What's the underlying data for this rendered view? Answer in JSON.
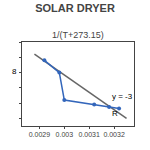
{
  "chart_data": {
    "type": "line",
    "title": "SOLAR DRYER",
    "xlabel": "1/(T+273.15)",
    "series": [
      {
        "type": "line",
        "color": "#666666",
        "line_style": "solid",
        "x": [
          0.00288,
          0.00325
        ],
        "values": [
          -9.8,
          -14.0
        ]
      },
      {
        "type": "line",
        "color": "#3366BB",
        "line_style": "solid",
        "marker": "circle",
        "x": [
          0.00292,
          0.00298,
          0.003,
          0.00312,
          0.00318,
          0.00322
        ],
        "values": [
          -10.2,
          -11.0,
          -12.8,
          -13.1,
          -13.25,
          -13.35
        ]
      }
    ],
    "xlim": [
      0.00283,
      0.00328
    ],
    "xticks": [
      0.0029,
      0.003,
      0.0031,
      0.0032
    ],
    "ylim": [
      -14.5,
      -9.0
    ],
    "yticks": [
      -14,
      -13,
      -12,
      -11,
      -10,
      -9
    ],
    "tick_labels": "x",
    "grid": false,
    "annotations": [
      {
        "text": "y = -3",
        "x": 0.003185,
        "y": -13.0
      },
      {
        "text": "R",
        "x": 0.003185,
        "y": -13.25
      },
      {
        "text": "8"
      }
    ]
  }
}
